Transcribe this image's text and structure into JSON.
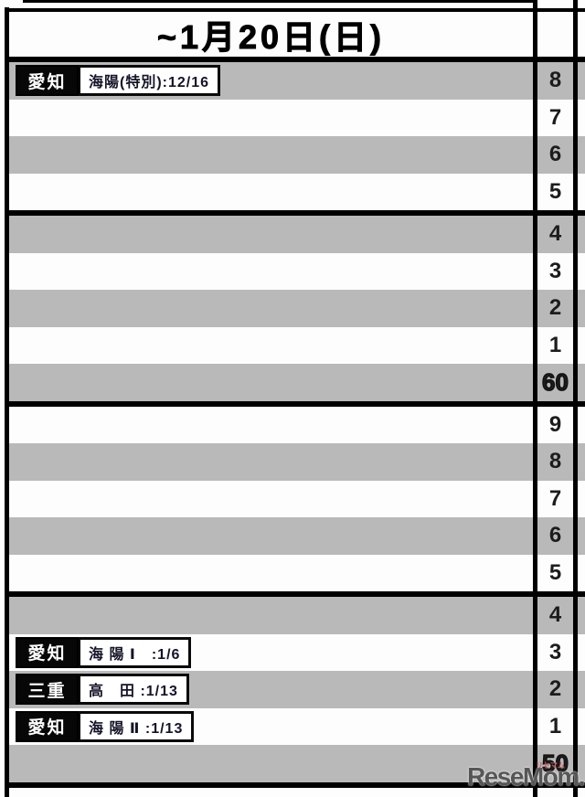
{
  "header": {
    "title": "~1月20日(日)"
  },
  "watermark": {
    "text": "ReseMom.",
    "subtext": "リセマム"
  },
  "colors": {
    "stripe_gray": "#b9b9b9",
    "row_white": "#fdfdfd",
    "border_black": "#000000",
    "watermark_gray": "#565656"
  },
  "grid": {
    "groups": [
      {
        "rows": [
          {
            "num": "8",
            "shaded": true,
            "decade": false,
            "entry": {
              "prefecture": "愛知",
              "school": "海陽(特別):12/16"
            }
          },
          {
            "num": "7",
            "shaded": false,
            "decade": false
          },
          {
            "num": "6",
            "shaded": true,
            "decade": false
          },
          {
            "num": "5",
            "shaded": false,
            "decade": false
          }
        ]
      },
      {
        "rows": [
          {
            "num": "4",
            "shaded": true,
            "decade": false
          },
          {
            "num": "3",
            "shaded": false,
            "decade": false
          },
          {
            "num": "2",
            "shaded": true,
            "decade": false
          },
          {
            "num": "1",
            "shaded": false,
            "decade": false
          },
          {
            "num": "60",
            "shaded": true,
            "decade": true
          }
        ]
      },
      {
        "rows": [
          {
            "num": "9",
            "shaded": false,
            "decade": false
          },
          {
            "num": "8",
            "shaded": true,
            "decade": false
          },
          {
            "num": "7",
            "shaded": false,
            "decade": false
          },
          {
            "num": "6",
            "shaded": true,
            "decade": false
          },
          {
            "num": "5",
            "shaded": false,
            "decade": false
          }
        ]
      },
      {
        "rows": [
          {
            "num": "4",
            "shaded": true,
            "decade": false
          },
          {
            "num": "3",
            "shaded": false,
            "decade": false,
            "entry": {
              "prefecture": "愛知",
              "school": "海 陽 Ⅰ　:1/6"
            }
          },
          {
            "num": "2",
            "shaded": true,
            "decade": false,
            "entry": {
              "prefecture": "三重",
              "school": "高　田 :1/13"
            }
          },
          {
            "num": "1",
            "shaded": false,
            "decade": false,
            "entry": {
              "prefecture": "愛知",
              "school": "海 陽 Ⅱ :1/13"
            }
          },
          {
            "num": "50",
            "shaded": true,
            "decade": true
          }
        ]
      }
    ]
  }
}
